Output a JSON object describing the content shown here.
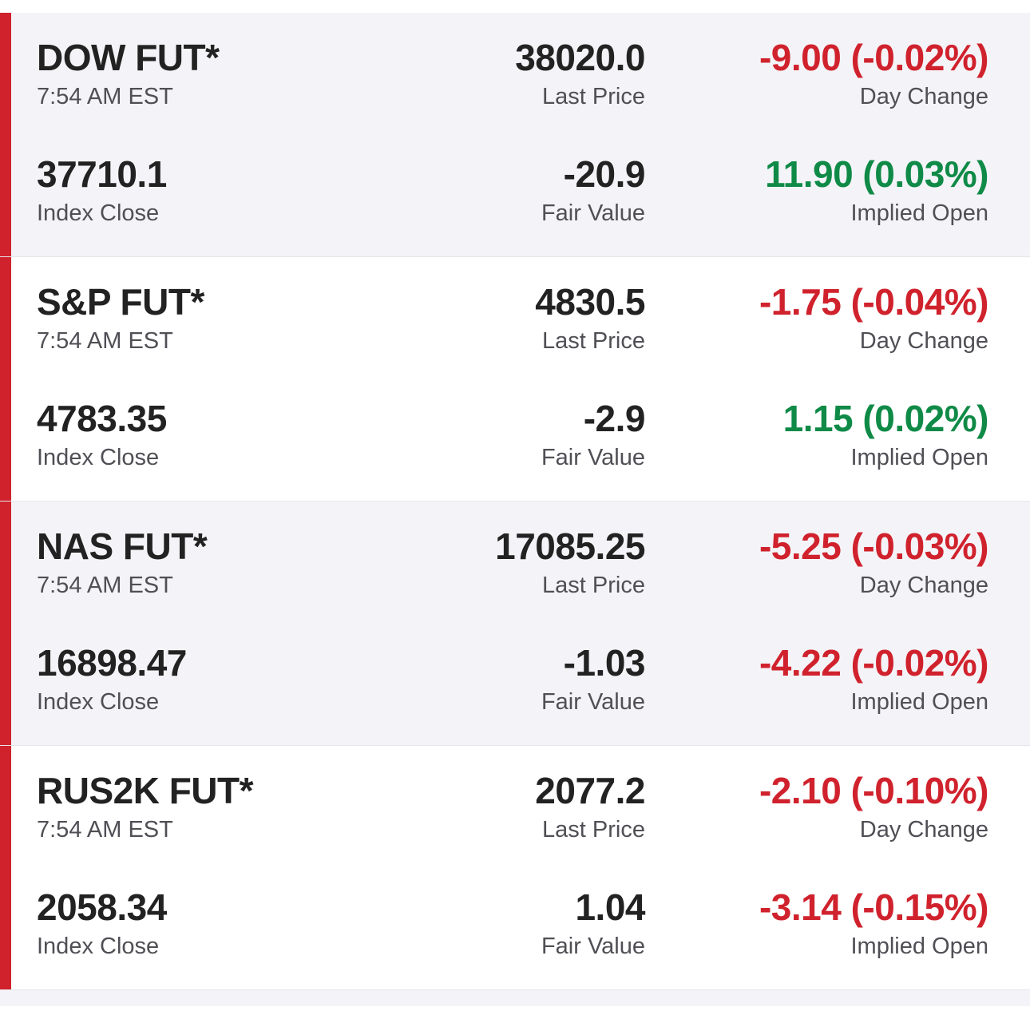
{
  "colors": {
    "accent": "#d0222d",
    "negative": "#d0222d",
    "positive": "#0f8a47",
    "label": "#4f4f55",
    "value": "#222222",
    "shaded_row": "#f4f4f8"
  },
  "futures": [
    {
      "name": "DOW FUT*",
      "time": "7:54 AM EST",
      "last_price": "38020.0",
      "last_price_label": "Last Price",
      "day_change": "-9.00 (-0.02%)",
      "day_change_label": "Day Change",
      "day_change_dir": "negative",
      "index_close": "37710.1",
      "index_close_label": "Index Close",
      "fair_value": "-20.9",
      "fair_value_label": "Fair Value",
      "implied_open": "11.90 (0.03%)",
      "implied_open_label": "Implied Open",
      "implied_open_dir": "positive"
    },
    {
      "name": "S&P FUT*",
      "time": "7:54 AM EST",
      "last_price": "4830.5",
      "last_price_label": "Last Price",
      "day_change": "-1.75 (-0.04%)",
      "day_change_label": "Day Change",
      "day_change_dir": "negative",
      "index_close": "4783.35",
      "index_close_label": "Index Close",
      "fair_value": "-2.9",
      "fair_value_label": "Fair Value",
      "implied_open": "1.15 (0.02%)",
      "implied_open_label": "Implied Open",
      "implied_open_dir": "positive"
    },
    {
      "name": "NAS FUT*",
      "time": "7:54 AM EST",
      "last_price": "17085.25",
      "last_price_label": "Last Price",
      "day_change": "-5.25 (-0.03%)",
      "day_change_label": "Day Change",
      "day_change_dir": "negative",
      "index_close": "16898.47",
      "index_close_label": "Index Close",
      "fair_value": "-1.03",
      "fair_value_label": "Fair Value",
      "implied_open": "-4.22 (-0.02%)",
      "implied_open_label": "Implied Open",
      "implied_open_dir": "negative"
    },
    {
      "name": "RUS2K FUT*",
      "time": "7:54 AM EST",
      "last_price": "2077.2",
      "last_price_label": "Last Price",
      "day_change": "-2.10 (-0.10%)",
      "day_change_label": "Day Change",
      "day_change_dir": "negative",
      "index_close": "2058.34",
      "index_close_label": "Index Close",
      "fair_value": "1.04",
      "fair_value_label": "Fair Value",
      "implied_open": "-3.14 (-0.15%)",
      "implied_open_label": "Implied Open",
      "implied_open_dir": "negative"
    }
  ]
}
